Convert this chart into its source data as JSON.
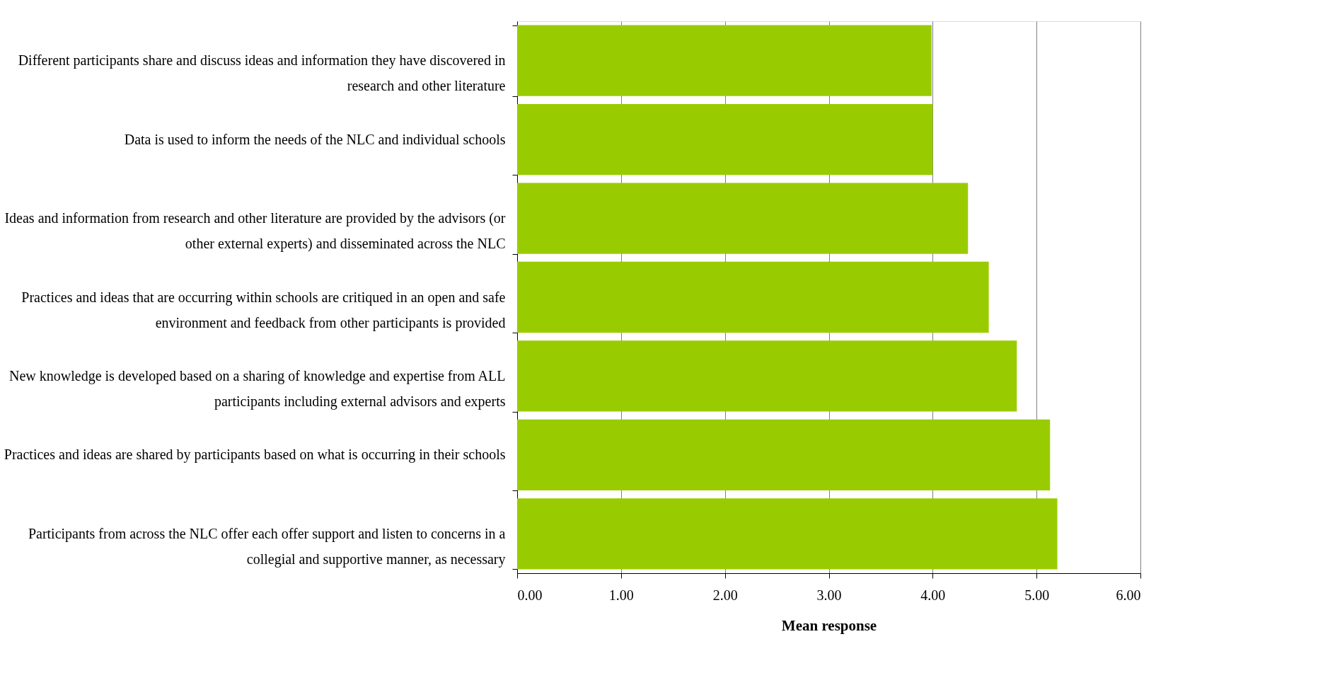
{
  "chart_data": {
    "type": "bar",
    "orientation": "horizontal",
    "xlabel": "Mean response",
    "categories": [
      "Different participants share and discuss ideas and information they have discovered in research and other literature",
      "Data is used to inform the needs of the NLC and individual schools",
      "Ideas and information from research and other literature are provided by the advisors (or other external experts) and disseminated across the NLC",
      "Practices and ideas that are occurring within schools are critiqued in an open and safe environment and feedback from other participants is provided",
      "New knowledge is developed based on a sharing of knowledge and expertise from ALL participants including external advisors and experts",
      "Practices and ideas are shared by participants based on what is occurring in their schools",
      "Participants from across the NLC offer each offer support and listen to concerns in a collegial and supportive manner, as necessary"
    ],
    "values": [
      3.99,
      4.0,
      4.34,
      4.54,
      4.81,
      5.13,
      5.2
    ],
    "color": "#99cc00",
    "xlim": [
      0,
      6
    ],
    "xticks": [
      {
        "value": 0,
        "label": "0.00"
      },
      {
        "value": 1,
        "label": "1.00"
      },
      {
        "value": 2,
        "label": "2.00"
      },
      {
        "value": 3,
        "label": "3.00"
      },
      {
        "value": 4,
        "label": "4.00"
      },
      {
        "value": 5,
        "label": "5.00"
      },
      {
        "value": 6,
        "label": "6.00"
      }
    ],
    "grid": "x"
  }
}
